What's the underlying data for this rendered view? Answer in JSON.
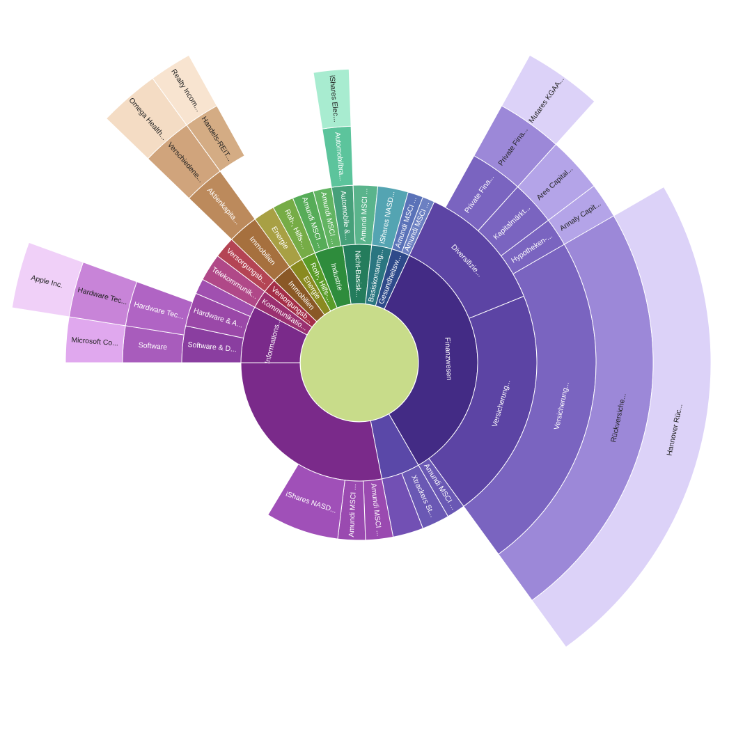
{
  "chart_data": {
    "type": "sunburst",
    "center_color": "#c8dc8a",
    "segments": [
      {
        "ring": 1,
        "start": -180,
        "end": -152,
        "label": "Informations...",
        "color": "#7a2a8a"
      },
      {
        "ring": 1,
        "start": -152,
        "end": -143,
        "label": "Kommunikatio...",
        "color": "#9a3070"
      },
      {
        "ring": 1,
        "start": -143,
        "end": -136,
        "label": "Versorgungsb...",
        "color": "#a42e48"
      },
      {
        "ring": 1,
        "start": -136,
        "end": -126,
        "label": "Immobilien",
        "color": "#8a5826"
      },
      {
        "ring": 1,
        "start": -126,
        "end": -119,
        "label": "Energie",
        "color": "#8a8a20"
      },
      {
        "ring": 1,
        "start": -119,
        "end": -112,
        "label": "Roh-, Hilfs-...",
        "color": "#5a9c28"
      },
      {
        "ring": 1,
        "start": -112,
        "end": -98,
        "label": "Industrie",
        "color": "#2e8c3c"
      },
      {
        "ring": 1,
        "start": -98,
        "end": -84,
        "label": "Nicht-Basisk...",
        "color": "#247c5c"
      },
      {
        "ring": 1,
        "start": -84,
        "end": -74,
        "label": "Basiskonsumg...",
        "color": "#2a7680"
      },
      {
        "ring": 1,
        "start": -74,
        "end": -65,
        "label": "Gesundheitsw...",
        "color": "#2e4a8a"
      },
      {
        "ring": 1,
        "start": -65,
        "end": 60,
        "label": "Finanzwesen",
        "color": "#432b85"
      },
      {
        "ring": 1,
        "start": 60,
        "end": 79,
        "label": "",
        "color": "#5a48a8"
      },
      {
        "ring": 1,
        "start": 79,
        "end": 180,
        "label": "",
        "color": "#7a2a8a"
      },
      {
        "ring": 2,
        "start": -180,
        "end": -168,
        "label": "Software & D...",
        "color": "#8a3ea0"
      },
      {
        "ring": 2,
        "start": -168,
        "end": -157,
        "label": "Hardware & A...",
        "color": "#9a48a8"
      },
      {
        "ring": 2,
        "start": -157,
        "end": -152,
        "label": "",
        "color": "#a050b0"
      },
      {
        "ring": 2,
        "start": -152,
        "end": -143,
        "label": "Telekommunik...",
        "color": "#b04888"
      },
      {
        "ring": 2,
        "start": -143,
        "end": -136,
        "label": "Versorgungsb...",
        "color": "#b44454"
      },
      {
        "ring": 2,
        "start": -136,
        "end": -126,
        "label": "Immobilien",
        "color": "#a6703e"
      },
      {
        "ring": 2,
        "start": -126,
        "end": -119,
        "label": "Energie",
        "color": "#a8a044"
      },
      {
        "ring": 2,
        "start": -119,
        "end": -112,
        "label": "Roh-, Hilfs-...",
        "color": "#76ac46"
      },
      {
        "ring": 2,
        "start": -112,
        "end": -105,
        "label": "Amundi MSCI ...",
        "color": "#56ac58"
      },
      {
        "ring": 2,
        "start": -105,
        "end": -99,
        "label": "Amundi MSCI ...",
        "color": "#62b462"
      },
      {
        "ring": 2,
        "start": -99,
        "end": -92,
        "label": "Automobile &...",
        "color": "#46a07a"
      },
      {
        "ring": 2,
        "start": -92,
        "end": -84,
        "label": "Amundi MSCI ...",
        "color": "#5ab48c"
      },
      {
        "ring": 2,
        "start": -84,
        "end": -74,
        "label": "iShares NASD...",
        "color": "#54a4b2"
      },
      {
        "ring": 2,
        "start": -74,
        "end": -69,
        "label": "Amundi MSCI ...",
        "color": "#5a72b8"
      },
      {
        "ring": 2,
        "start": -69,
        "end": -65,
        "label": "Amundi MSCI ...",
        "color": "#6c80c2"
      },
      {
        "ring": 2,
        "start": -65,
        "end": -22,
        "label": "Diversifizie...",
        "color": "#5c44a4"
      },
      {
        "ring": 2,
        "start": -22,
        "end": 54,
        "label": "Versicherung...",
        "color": "#5c44a4"
      },
      {
        "ring": 2,
        "start": 54,
        "end": 60,
        "label": "Amundi MSCI ...",
        "color": "#6a58b4"
      },
      {
        "ring": 2,
        "start": 60,
        "end": 69,
        "label": "Xtrackers St...",
        "color": "#6a58b4"
      },
      {
        "ring": 2,
        "start": 69,
        "end": 79,
        "label": "",
        "color": "#7250b4"
      },
      {
        "ring": 2,
        "start": 79,
        "end": 88,
        "label": "Amundi MSCI ...",
        "color": "#9a4ab0"
      },
      {
        "ring": 2,
        "start": 88,
        "end": 97,
        "label": "Amundi MSCI ...",
        "color": "#9a4ab0"
      },
      {
        "ring": 2,
        "start": 97,
        "end": 121,
        "label": "iShares NASD...",
        "color": "#a050b8"
      },
      {
        "ring": 3,
        "start": -180,
        "end": -171,
        "label": "Software",
        "color": "#a85cbc"
      },
      {
        "ring": 3,
        "start": -171,
        "end": -160,
        "label": "Hardware Tec...",
        "color": "#b064c4"
      },
      {
        "ring": 3,
        "start": -136,
        "end": -126,
        "label": "Aktienkapita...",
        "color": "#bc8a5c"
      },
      {
        "ring": 3,
        "start": -61,
        "end": -48,
        "label": "Private Fina...",
        "color": "#7a64c0"
      },
      {
        "ring": 3,
        "start": -48,
        "end": -37,
        "label": "Kapitalmärkt...",
        "color": "#7a64c0"
      },
      {
        "ring": 3,
        "start": -37,
        "end": -30,
        "label": "Hypotheken-...",
        "color": "#7a64c0"
      },
      {
        "ring": 3,
        "start": -30,
        "end": 54,
        "label": "Versicherung...",
        "color": "#7a64c0"
      },
      {
        "ring": 3,
        "start": -99,
        "end": -92,
        "label": "Automobilbra...",
        "color": "#5cc49c"
      },
      {
        "ring": 4,
        "start": -180,
        "end": -171,
        "label": "Microsoft Co...",
        "color": "#e0a8ee"
      },
      {
        "ring": 4,
        "start": -171,
        "end": -160,
        "label": "Hardware Tec...",
        "color": "#c884d8"
      },
      {
        "ring": 4,
        "start": -136,
        "end": -126,
        "label": "Verschiedene...",
        "color": "#d0a47c"
      },
      {
        "ring": 4,
        "start": -126,
        "end": -119,
        "label": "Handels-REIT...",
        "color": "#d4ac84"
      },
      {
        "ring": 4,
        "start": -61,
        "end": -48,
        "label": "Private Fina...",
        "color": "#9c88d8"
      },
      {
        "ring": 4,
        "start": -48,
        "end": -37,
        "label": "Ares Capital...",
        "color": "#b4a4e8"
      },
      {
        "ring": 4,
        "start": -37,
        "end": -30,
        "label": "Annaly Capit...",
        "color": "#b4a4e8"
      },
      {
        "ring": 4,
        "start": -30,
        "end": 54,
        "label": "Rückversiche...",
        "color": "#9c88d8"
      },
      {
        "ring": 4,
        "start": -99,
        "end": -92,
        "label": "iShares Elec...",
        "color": "#a8ecd0"
      },
      {
        "ring": 5,
        "start": -171,
        "end": -160,
        "label": "Apple Inc.",
        "color": "#f0d0f8"
      },
      {
        "ring": 5,
        "start": -136,
        "end": -126,
        "label": "Omega Health...",
        "color": "#f4dcc4"
      },
      {
        "ring": 5,
        "start": -126,
        "end": -119,
        "label": "Realty Incom...",
        "color": "#f8e4d0"
      },
      {
        "ring": 5,
        "start": -61,
        "end": -48,
        "label": "Mutares KGAA...",
        "color": "#dcd2f8"
      },
      {
        "ring": 5,
        "start": -30,
        "end": 54,
        "label": "Hannover Rüc...",
        "color": "#dcd2f8"
      }
    ]
  }
}
